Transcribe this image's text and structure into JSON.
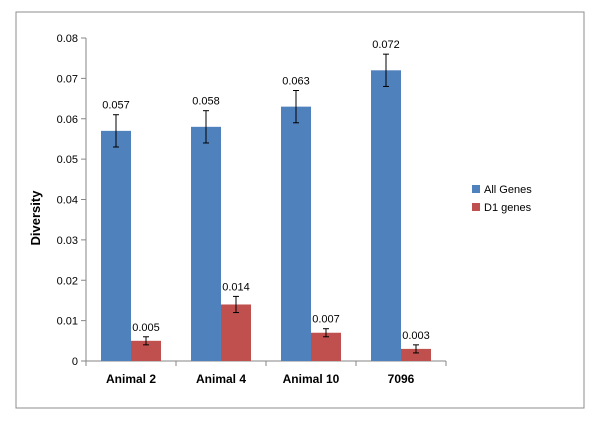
{
  "chart_data": {
    "type": "bar",
    "title": "",
    "xlabel": "",
    "ylabel": "Diversity",
    "categories": [
      "Animal 2",
      "Animal 4",
      "Animal 10",
      "7096"
    ],
    "ylim": [
      0,
      0.08
    ],
    "yticks": [
      0,
      0.01,
      0.02,
      0.03,
      0.04,
      0.05,
      0.06,
      0.07,
      0.08
    ],
    "ytick_labels": [
      "0",
      "0.01",
      "0.02",
      "0.03",
      "0.04",
      "0.05",
      "0.06",
      "0.07",
      "0.08"
    ],
    "grid": false,
    "legend": "right",
    "series": [
      {
        "name": "All Genes",
        "color": "#4F81BD",
        "values": [
          0.057,
          0.058,
          0.063,
          0.072
        ],
        "labels": [
          "0.057",
          "0.058",
          "0.063",
          "0.072"
        ],
        "errors": [
          0.004,
          0.004,
          0.004,
          0.004
        ]
      },
      {
        "name": "D1 genes",
        "color": "#C0504D",
        "values": [
          0.005,
          0.014,
          0.007,
          0.003
        ],
        "labels": [
          "0.005",
          "0.014",
          "0.007",
          "0.003"
        ],
        "errors": [
          0.001,
          0.002,
          0.001,
          0.001
        ]
      }
    ]
  }
}
